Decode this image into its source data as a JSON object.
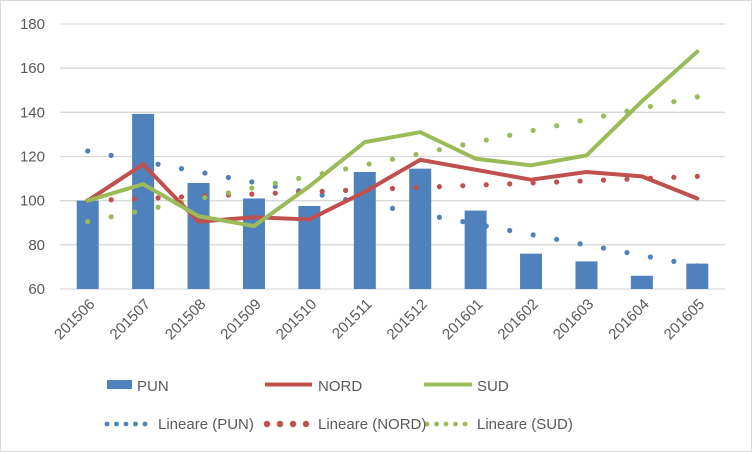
{
  "chart_data": {
    "type": "bar",
    "title": "",
    "xlabel": "",
    "ylabel": "",
    "ylim": [
      60,
      180
    ],
    "yticks": [
      60,
      80,
      100,
      120,
      140,
      160,
      180
    ],
    "grid": true,
    "legend_position": "bottom",
    "categories": [
      "201506",
      "201507",
      "201508",
      "201509",
      "201510",
      "201511",
      "201512",
      "201601",
      "201602",
      "201603",
      "201604",
      "201605"
    ],
    "series": [
      {
        "name": "PUN",
        "kind": "bar",
        "color": "#4F81BD",
        "values": [
          100,
          139.3,
          108,
          101,
          97.6,
          113,
          114.5,
          95.5,
          76,
          72.5,
          66,
          71.5
        ]
      },
      {
        "name": "NORD",
        "kind": "line",
        "color": "#C0504D",
        "values": [
          100,
          116.5,
          90.5,
          92.5,
          91.5,
          104,
          118.5,
          114,
          109.5,
          113,
          111,
          101
        ]
      },
      {
        "name": "SUD",
        "kind": "line",
        "color": "#9BBB59",
        "values": [
          100,
          107.5,
          93,
          88.5,
          106.5,
          126.5,
          131,
          119,
          116,
          120.5,
          145,
          167.5
        ]
      }
    ],
    "trendlines": [
      {
        "name": "Lineare (PUN)",
        "of": "PUN",
        "kind": "linear",
        "color": "#4F81BD",
        "start": 122.5,
        "end": 70.5
      },
      {
        "name": "Lineare (NORD)",
        "of": "NORD",
        "kind": "linear",
        "color": "#C0504D",
        "start": 100,
        "end": 111
      },
      {
        "name": "Lineare (SUD)",
        "of": "SUD",
        "kind": "linear",
        "color": "#9BBB59",
        "start": 90.5,
        "end": 147
      }
    ]
  },
  "legend": {
    "row1": [
      "PUN",
      "NORD",
      "SUD"
    ],
    "row2": [
      "Lineare (PUN)",
      "Lineare (NORD)",
      "Lineare (SUD)"
    ]
  }
}
